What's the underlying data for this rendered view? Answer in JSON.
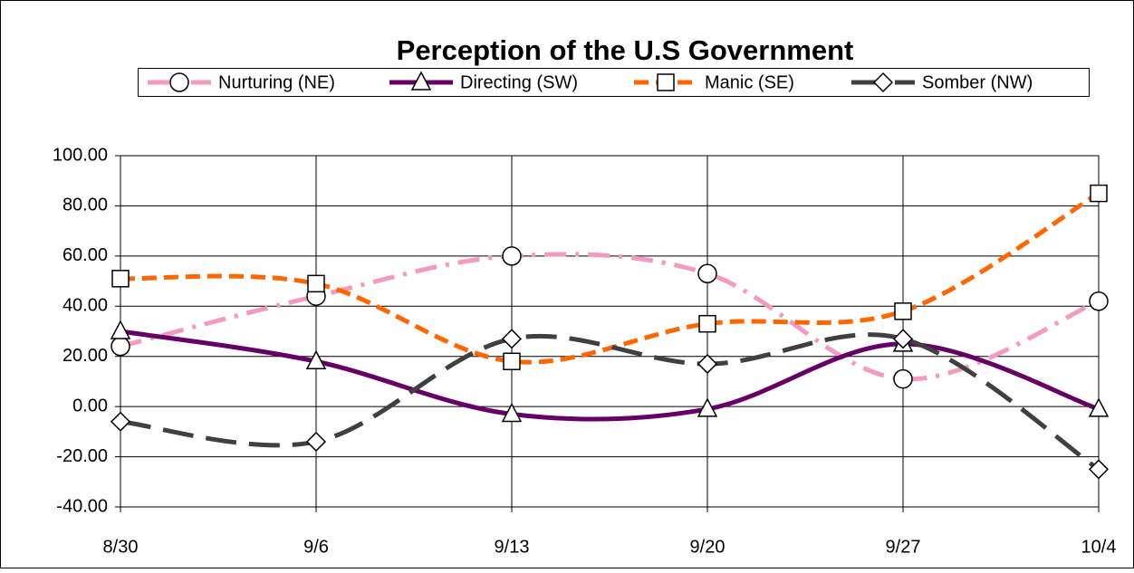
{
  "chart_data": {
    "type": "line",
    "title": "Perception of the U.S Government",
    "categories": [
      "8/30",
      "9/6",
      "9/13",
      "9/20",
      "9/27",
      "10/4"
    ],
    "series": [
      {
        "name": "Nurturing (NE)",
        "color": "#f49ac1",
        "dash": "dashdot",
        "marker": "circle",
        "values": [
          24,
          44,
          60,
          53,
          11,
          42
        ]
      },
      {
        "name": "Directing (SW)",
        "color": "#660066",
        "dash": "solid",
        "marker": "triangle",
        "values": [
          30,
          18,
          -3,
          -1,
          25,
          -1
        ]
      },
      {
        "name": "Manic (SE)",
        "color": "#ff6600",
        "dash": "dashed",
        "marker": "square",
        "values": [
          51,
          49,
          18,
          33,
          38,
          85
        ]
      },
      {
        "name": "Somber (NW)",
        "color": "#404040",
        "dash": "longdash",
        "marker": "diamond",
        "values": [
          -6,
          -14,
          27,
          17,
          27,
          -25
        ]
      }
    ],
    "ylim": [
      -40,
      100
    ],
    "yticks": [
      {
        "value": -40,
        "label": "-40.00"
      },
      {
        "value": -20,
        "label": "-20.00"
      },
      {
        "value": 0,
        "label": "0.00"
      },
      {
        "value": 20,
        "label": "20.00"
      },
      {
        "value": 40,
        "label": "40.00"
      },
      {
        "value": 60,
        "label": "60.00"
      },
      {
        "value": 80,
        "label": "80.00"
      },
      {
        "value": 100,
        "label": "100.00"
      }
    ],
    "grid": true,
    "legend": "top",
    "smooth": true
  }
}
